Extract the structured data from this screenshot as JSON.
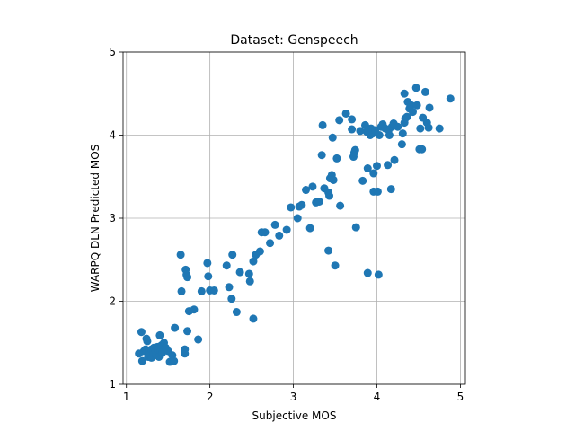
{
  "chart_data": {
    "type": "scatter",
    "title": "Dataset: Genspeech",
    "xlabel": "Subjective MOS",
    "ylabel": "WARPQ DLN Predicted MOS",
    "xlim": [
      0.96,
      5.06
    ],
    "ylim": [
      1,
      5
    ],
    "xticks": [
      "1",
      "2",
      "3",
      "4",
      "5"
    ],
    "yticks": [
      "1",
      "2",
      "3",
      "4",
      "5"
    ],
    "grid": true,
    "color": "#1f77b4",
    "points": [
      [
        1.15,
        1.37
      ],
      [
        1.18,
        1.63
      ],
      [
        1.19,
        1.28
      ],
      [
        1.21,
        1.4
      ],
      [
        1.23,
        1.42
      ],
      [
        1.24,
        1.55
      ],
      [
        1.25,
        1.52
      ],
      [
        1.26,
        1.33
      ],
      [
        1.27,
        1.4
      ],
      [
        1.28,
        1.35
      ],
      [
        1.3,
        1.42
      ],
      [
        1.3,
        1.32
      ],
      [
        1.32,
        1.38
      ],
      [
        1.33,
        1.44
      ],
      [
        1.35,
        1.4
      ],
      [
        1.36,
        1.35
      ],
      [
        1.37,
        1.45
      ],
      [
        1.38,
        1.42
      ],
      [
        1.39,
        1.33
      ],
      [
        1.4,
        1.59
      ],
      [
        1.41,
        1.4
      ],
      [
        1.42,
        1.47
      ],
      [
        1.43,
        1.38
      ],
      [
        1.45,
        1.5
      ],
      [
        1.47,
        1.44
      ],
      [
        1.5,
        1.4
      ],
      [
        1.52,
        1.27
      ],
      [
        1.55,
        1.35
      ],
      [
        1.57,
        1.28
      ],
      [
        1.58,
        1.68
      ],
      [
        1.65,
        2.56
      ],
      [
        1.66,
        2.12
      ],
      [
        1.7,
        1.42
      ],
      [
        1.7,
        1.37
      ],
      [
        1.71,
        2.38
      ],
      [
        1.72,
        2.32
      ],
      [
        1.73,
        2.29
      ],
      [
        1.73,
        1.64
      ],
      [
        1.75,
        1.88
      ],
      [
        1.81,
        1.9
      ],
      [
        1.86,
        1.54
      ],
      [
        1.9,
        2.12
      ],
      [
        1.97,
        2.46
      ],
      [
        1.98,
        2.3
      ],
      [
        2.0,
        2.13
      ],
      [
        2.05,
        2.13
      ],
      [
        2.2,
        2.43
      ],
      [
        2.23,
        2.17
      ],
      [
        2.26,
        2.03
      ],
      [
        2.27,
        2.56
      ],
      [
        2.32,
        1.87
      ],
      [
        2.36,
        2.35
      ],
      [
        2.47,
        2.33
      ],
      [
        2.48,
        2.24
      ],
      [
        2.52,
        1.79
      ],
      [
        2.52,
        2.48
      ],
      [
        2.55,
        2.56
      ],
      [
        2.6,
        2.6
      ],
      [
        2.62,
        2.83
      ],
      [
        2.66,
        2.83
      ],
      [
        2.72,
        2.7
      ],
      [
        2.78,
        2.92
      ],
      [
        2.83,
        2.79
      ],
      [
        2.92,
        2.86
      ],
      [
        2.97,
        3.13
      ],
      [
        3.05,
        3.0
      ],
      [
        3.07,
        3.14
      ],
      [
        3.1,
        3.16
      ],
      [
        3.15,
        3.34
      ],
      [
        3.2,
        2.88
      ],
      [
        3.23,
        3.38
      ],
      [
        3.27,
        3.19
      ],
      [
        3.31,
        3.2
      ],
      [
        3.34,
        3.76
      ],
      [
        3.35,
        4.12
      ],
      [
        3.37,
        3.36
      ],
      [
        3.42,
        3.31
      ],
      [
        3.42,
        2.61
      ],
      [
        3.43,
        3.27
      ],
      [
        3.44,
        3.48
      ],
      [
        3.46,
        3.52
      ],
      [
        3.47,
        3.97
      ],
      [
        3.48,
        3.46
      ],
      [
        3.5,
        2.43
      ],
      [
        3.52,
        3.72
      ],
      [
        3.55,
        4.18
      ],
      [
        3.56,
        3.15
      ],
      [
        3.63,
        4.26
      ],
      [
        3.7,
        4.19
      ],
      [
        3.7,
        4.07
      ],
      [
        3.72,
        3.74
      ],
      [
        3.73,
        3.79
      ],
      [
        3.74,
        3.82
      ],
      [
        3.75,
        2.89
      ],
      [
        3.8,
        4.05
      ],
      [
        3.83,
        3.45
      ],
      [
        3.86,
        4.12
      ],
      [
        3.88,
        4.04
      ],
      [
        3.89,
        2.34
      ],
      [
        3.89,
        3.6
      ],
      [
        3.92,
        4.0
      ],
      [
        3.93,
        4.08
      ],
      [
        3.95,
        4.02
      ],
      [
        3.96,
        3.54
      ],
      [
        3.96,
        3.32
      ],
      [
        3.98,
        4.06
      ],
      [
        4.0,
        3.63
      ],
      [
        4.01,
        3.32
      ],
      [
        4.02,
        2.32
      ],
      [
        4.03,
        4.0
      ],
      [
        4.05,
        4.1
      ],
      [
        4.07,
        4.13
      ],
      [
        4.1,
        4.08
      ],
      [
        4.13,
        3.64
      ],
      [
        4.14,
        4.06
      ],
      [
        4.15,
        4.0
      ],
      [
        4.17,
        3.35
      ],
      [
        4.18,
        4.1
      ],
      [
        4.2,
        4.14
      ],
      [
        4.21,
        3.7
      ],
      [
        4.25,
        4.1
      ],
      [
        4.3,
        3.89
      ],
      [
        4.31,
        4.02
      ],
      [
        4.33,
        4.15
      ],
      [
        4.33,
        4.5
      ],
      [
        4.34,
        4.2
      ],
      [
        4.36,
        4.22
      ],
      [
        4.37,
        4.4
      ],
      [
        4.39,
        4.32
      ],
      [
        4.41,
        4.36
      ],
      [
        4.43,
        4.28
      ],
      [
        4.47,
        4.57
      ],
      [
        4.48,
        4.36
      ],
      [
        4.51,
        3.83
      ],
      [
        4.52,
        4.08
      ],
      [
        4.54,
        3.83
      ],
      [
        4.55,
        4.21
      ],
      [
        4.58,
        4.52
      ],
      [
        4.6,
        4.15
      ],
      [
        4.62,
        4.09
      ],
      [
        4.63,
        4.33
      ],
      [
        4.75,
        4.08
      ],
      [
        4.88,
        4.44
      ]
    ]
  }
}
